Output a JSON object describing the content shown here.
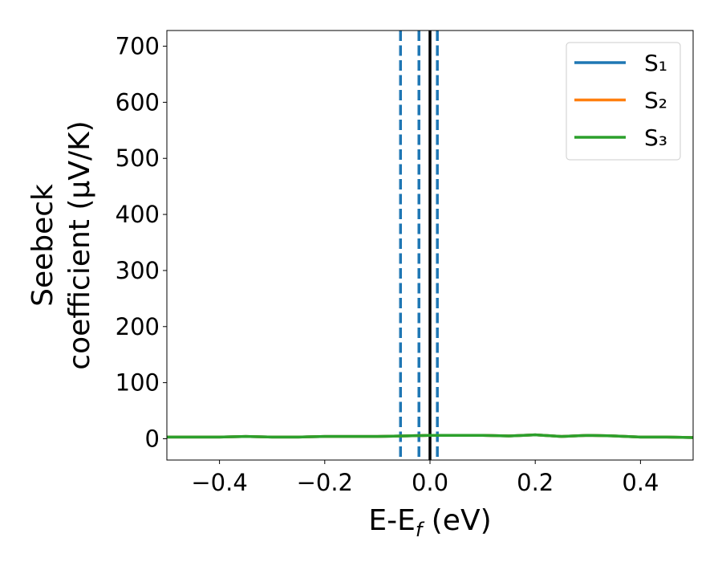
{
  "chart_data": {
    "type": "line",
    "xlabel": [
      "E-E",
      "f",
      " (eV)"
    ],
    "ylabel": [
      "Seebeck",
      "coefficient  (μV/K)"
    ],
    "x": [
      -0.5,
      -0.45,
      -0.4,
      -0.35,
      -0.3,
      -0.25,
      -0.2,
      -0.15,
      -0.1,
      -0.05,
      0,
      0.05,
      0.1,
      0.15,
      0.2,
      0.25,
      0.3,
      0.35,
      0.4,
      0.45,
      0.5
    ],
    "series": [
      {
        "name": "S₁",
        "color": "#1f77b4",
        "values": [
          3,
          3,
          3,
          4,
          3,
          3,
          4,
          4,
          4,
          5,
          6,
          6,
          6,
          5,
          7,
          4,
          6,
          5,
          3,
          3,
          2
        ]
      },
      {
        "name": "S₂",
        "color": "#ff7f0e",
        "values": [
          3,
          3,
          3,
          4,
          3,
          3,
          4,
          4,
          4,
          5,
          6,
          6,
          6,
          5,
          7,
          4,
          6,
          5,
          3,
          3,
          2
        ]
      },
      {
        "name": "S₃",
        "color": "#2ca02c",
        "values": [
          3,
          3,
          3,
          4,
          3,
          3,
          4,
          4,
          4,
          5,
          6,
          6,
          6,
          5,
          7,
          4,
          6,
          5,
          3,
          3,
          2
        ]
      }
    ],
    "vlines": [
      {
        "x": -0.056,
        "color": "#1f77b4",
        "style": "dashed"
      },
      {
        "x": -0.021,
        "color": "#1f77b4",
        "style": "dashed"
      },
      {
        "x": 0.014,
        "color": "#1f77b4",
        "style": "dashed"
      },
      {
        "x": 0,
        "color": "#000000",
        "style": "solid"
      }
    ],
    "xlim": [
      -0.5,
      0.5
    ],
    "ylim": [
      -38,
      728
    ],
    "xticks": [
      {
        "value": -0.4,
        "label": "−0.4"
      },
      {
        "value": -0.2,
        "label": "−0.2"
      },
      {
        "value": 0,
        "label": "0.0"
      },
      {
        "value": 0.2,
        "label": "0.2"
      },
      {
        "value": 0.4,
        "label": "0.4"
      }
    ],
    "yticks": [
      0,
      100,
      200,
      300,
      400,
      500,
      600,
      700
    ],
    "legend": "upper right"
  }
}
